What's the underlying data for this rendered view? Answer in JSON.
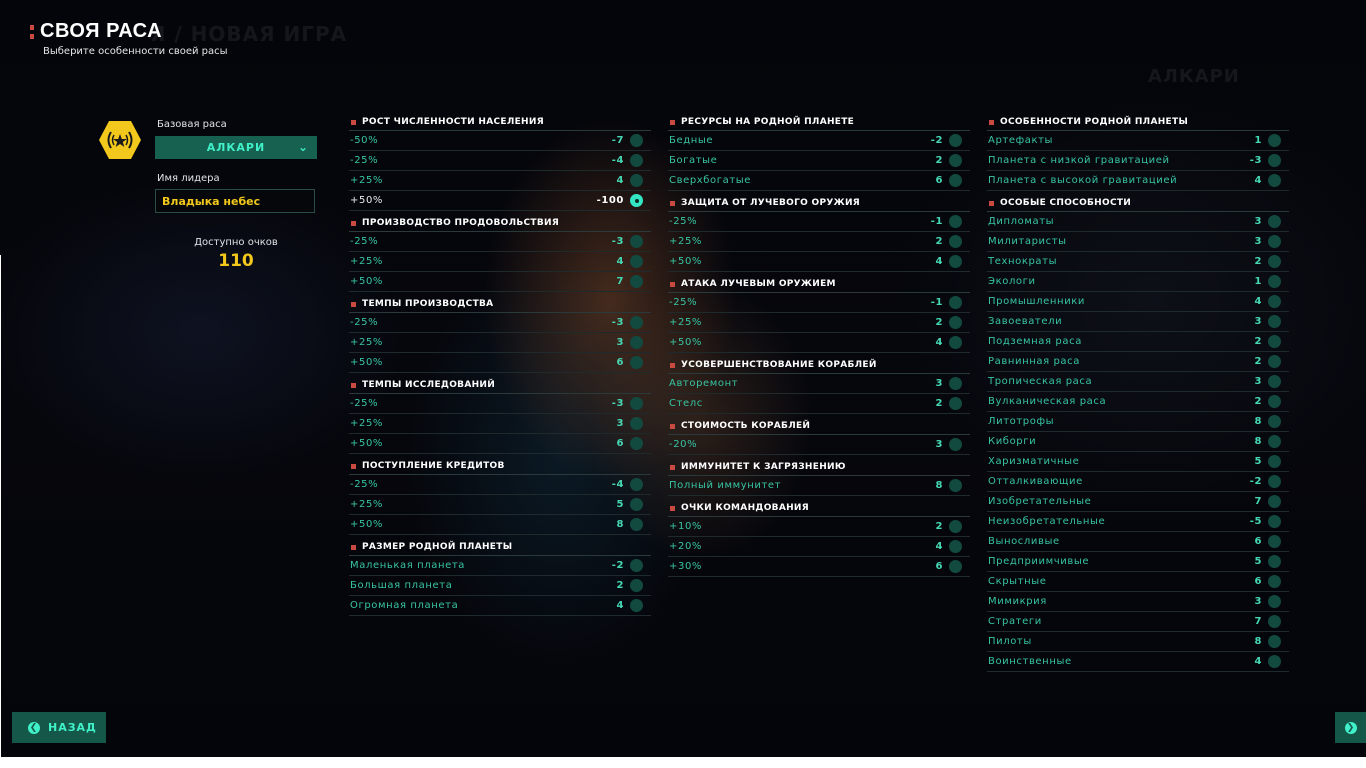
{
  "header": {
    "title": "СВОЯ РАСА",
    "subtitle": "Выберите особенности своей расы",
    "ghost_title": "Я / НОВАЯ ИГРА",
    "ghost_race_name": "АЛКАРИ"
  },
  "left_panel": {
    "emblem": "alkari-emblem-icon",
    "base_race_label": "Базовая раса",
    "base_race_value": "АЛКАРИ",
    "leader_label": "Имя лидера",
    "leader_value": "Владыка небес",
    "points_label": "Доступно очков",
    "points_value": "110"
  },
  "columns": [
    {
      "sections": [
        {
          "title": "РОСТ ЧИСЛЕННОСТИ НАСЕЛЕНИЯ",
          "items": [
            {
              "name": "-50%",
              "value": "-7",
              "selected": false
            },
            {
              "name": "-25%",
              "value": "-4",
              "selected": false
            },
            {
              "name": "+25%",
              "value": "4",
              "selected": false
            },
            {
              "name": "+50%",
              "value": "-100",
              "selected": true
            }
          ]
        },
        {
          "title": "ПРОИЗВОДСТВО ПРОДОВОЛЬСТВИЯ",
          "items": [
            {
              "name": "-25%",
              "value": "-3",
              "selected": false
            },
            {
              "name": "+25%",
              "value": "4",
              "selected": false
            },
            {
              "name": "+50%",
              "value": "7",
              "selected": false
            }
          ]
        },
        {
          "title": "ТЕМПЫ ПРОИЗВОДСТВА",
          "items": [
            {
              "name": "-25%",
              "value": "-3",
              "selected": false
            },
            {
              "name": "+25%",
              "value": "3",
              "selected": false
            },
            {
              "name": "+50%",
              "value": "6",
              "selected": false
            }
          ]
        },
        {
          "title": "ТЕМПЫ ИССЛЕДОВАНИЙ",
          "items": [
            {
              "name": "-25%",
              "value": "-3",
              "selected": false
            },
            {
              "name": "+25%",
              "value": "3",
              "selected": false
            },
            {
              "name": "+50%",
              "value": "6",
              "selected": false
            }
          ]
        },
        {
          "title": "ПОСТУПЛЕНИЕ КРЕДИТОВ",
          "items": [
            {
              "name": "-25%",
              "value": "-4",
              "selected": false
            },
            {
              "name": "+25%",
              "value": "5",
              "selected": false
            },
            {
              "name": "+50%",
              "value": "8",
              "selected": false
            }
          ]
        },
        {
          "title": "РАЗМЕР РОДНОЙ ПЛАНЕТЫ",
          "items": [
            {
              "name": "Маленькая планета",
              "value": "-2",
              "selected": false
            },
            {
              "name": "Большая планета",
              "value": "2",
              "selected": false
            },
            {
              "name": "Огромная планета",
              "value": "4",
              "selected": false
            }
          ]
        }
      ]
    },
    {
      "sections": [
        {
          "title": "РЕСУРСЫ НА РОДНОЙ ПЛАНЕТЕ",
          "items": [
            {
              "name": "Бедные",
              "value": "-2",
              "selected": false
            },
            {
              "name": "Богатые",
              "value": "2",
              "selected": false
            },
            {
              "name": "Сверхбогатые",
              "value": "6",
              "selected": false
            }
          ]
        },
        {
          "title": "ЗАЩИТА ОТ ЛУЧЕВОГО ОРУЖИЯ",
          "items": [
            {
              "name": "-25%",
              "value": "-1",
              "selected": false
            },
            {
              "name": "+25%",
              "value": "2",
              "selected": false
            },
            {
              "name": "+50%",
              "value": "4",
              "selected": false
            }
          ]
        },
        {
          "title": "АТАКА ЛУЧЕВЫМ ОРУЖИЕМ",
          "items": [
            {
              "name": "-25%",
              "value": "-1",
              "selected": false
            },
            {
              "name": "+25%",
              "value": "2",
              "selected": false
            },
            {
              "name": "+50%",
              "value": "4",
              "selected": false
            }
          ]
        },
        {
          "title": "УСОВЕРШЕНСТВОВАНИЕ КОРАБЛЕЙ",
          "items": [
            {
              "name": "Авторемонт",
              "value": "3",
              "selected": false
            },
            {
              "name": "Стелс",
              "value": "2",
              "selected": false
            }
          ]
        },
        {
          "title": "СТОИМОСТЬ КОРАБЛЕЙ",
          "items": [
            {
              "name": "-20%",
              "value": "3",
              "selected": false
            }
          ]
        },
        {
          "title": "ИММУНИТЕТ К ЗАГРЯЗНЕНИЮ",
          "items": [
            {
              "name": "Полный иммунитет",
              "value": "8",
              "selected": false
            }
          ]
        },
        {
          "title": "ОЧКИ КОМАНДОВАНИЯ",
          "items": [
            {
              "name": "+10%",
              "value": "2",
              "selected": false
            },
            {
              "name": "+20%",
              "value": "4",
              "selected": false
            },
            {
              "name": "+30%",
              "value": "6",
              "selected": false
            }
          ]
        }
      ]
    },
    {
      "sections": [
        {
          "title": "ОСОБЕННОСТИ РОДНОЙ ПЛАНЕТЫ",
          "items": [
            {
              "name": "Артефакты",
              "value": "1",
              "selected": false
            },
            {
              "name": "Планета с низкой гравитацией",
              "value": "-3",
              "selected": false
            },
            {
              "name": "Планета с высокой гравитацией",
              "value": "4",
              "selected": false
            }
          ]
        },
        {
          "title": "ОСОБЫЕ СПОСОБНОСТИ",
          "items": [
            {
              "name": "Дипломаты",
              "value": "3",
              "selected": false
            },
            {
              "name": "Милитаристы",
              "value": "3",
              "selected": false
            },
            {
              "name": "Технократы",
              "value": "2",
              "selected": false
            },
            {
              "name": "Экологи",
              "value": "1",
              "selected": false
            },
            {
              "name": "Промышленники",
              "value": "4",
              "selected": false
            },
            {
              "name": "Завоеватели",
              "value": "3",
              "selected": false
            },
            {
              "name": "Подземная раса",
              "value": "2",
              "selected": false
            },
            {
              "name": "Равнинная раса",
              "value": "2",
              "selected": false
            },
            {
              "name": "Тропическая раса",
              "value": "3",
              "selected": false
            },
            {
              "name": "Вулканическая раса",
              "value": "2",
              "selected": false
            },
            {
              "name": "Литотрофы",
              "value": "8",
              "selected": false
            },
            {
              "name": "Киборги",
              "value": "8",
              "selected": false
            },
            {
              "name": "Харизматичные",
              "value": "5",
              "selected": false
            },
            {
              "name": "Отталкивающие",
              "value": "-2",
              "selected": false
            },
            {
              "name": "Изобретательные",
              "value": "7",
              "selected": false
            },
            {
              "name": "Неизобретательные",
              "value": "-5",
              "selected": false
            },
            {
              "name": "Выносливые",
              "value": "6",
              "selected": false
            },
            {
              "name": "Предприимчивые",
              "value": "5",
              "selected": false
            },
            {
              "name": "Скрытные",
              "value": "6",
              "selected": false
            },
            {
              "name": "Мимикрия",
              "value": "3",
              "selected": false
            },
            {
              "name": "Стратеги",
              "value": "7",
              "selected": false
            },
            {
              "name": "Пилоты",
              "value": "8",
              "selected": false
            },
            {
              "name": "Воинственные",
              "value": "4",
              "selected": false
            }
          ]
        }
      ]
    }
  ],
  "footer": {
    "back_label": "НАЗАД",
    "back_icon": "chevron-left-icon",
    "next_icon": "chevron-right-icon"
  },
  "colors": {
    "accent": "#3ff0c8",
    "button_bg": "#15584a",
    "points_gold": "#f2c81c",
    "section_marker": "#c94a40"
  }
}
